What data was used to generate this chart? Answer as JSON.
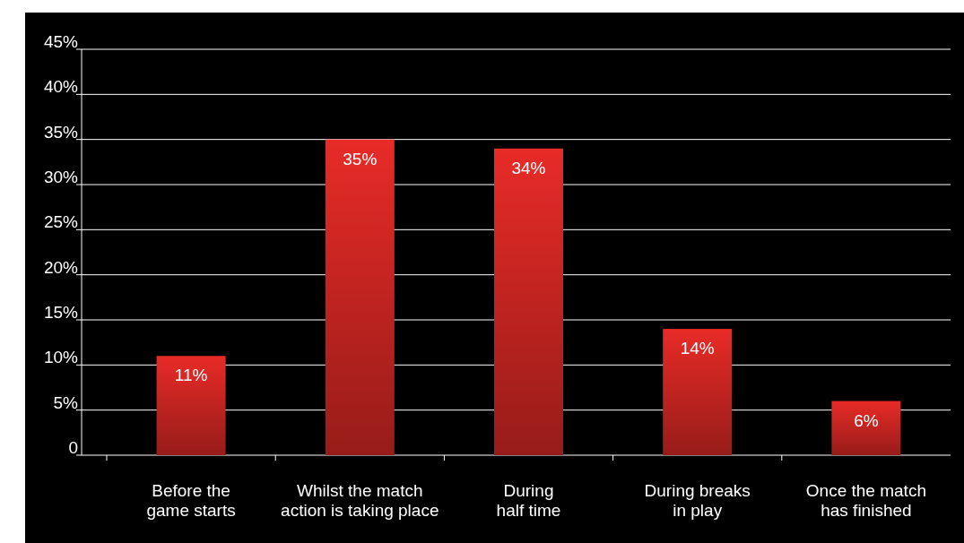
{
  "chart_data": {
    "type": "bar",
    "categories": [
      "Before the\ngame starts",
      "Whilst the match\naction is taking place",
      "During\nhalf time",
      "During breaks\nin play",
      "Once the match\nhas finished"
    ],
    "values": [
      11,
      35,
      34,
      14,
      6
    ],
    "value_labels": [
      "11%",
      "35%",
      "34%",
      "14%",
      "6%"
    ],
    "color": "#e82b27",
    "ylim": [
      0,
      45
    ],
    "yticks": [
      0,
      {
        "value": 5,
        "label": "5%"
      },
      {
        "value": 10,
        "label": "10%"
      },
      {
        "value": 15,
        "label": "15%"
      },
      {
        "value": 20,
        "label": "20%"
      },
      {
        "value": 25,
        "label": "25%"
      },
      {
        "value": 30,
        "label": "30%"
      },
      {
        "value": 35,
        "label": "35%"
      },
      {
        "value": 40,
        "label": "40%"
      },
      {
        "value": 45,
        "label": "45%"
      }
    ],
    "grid": "y"
  }
}
